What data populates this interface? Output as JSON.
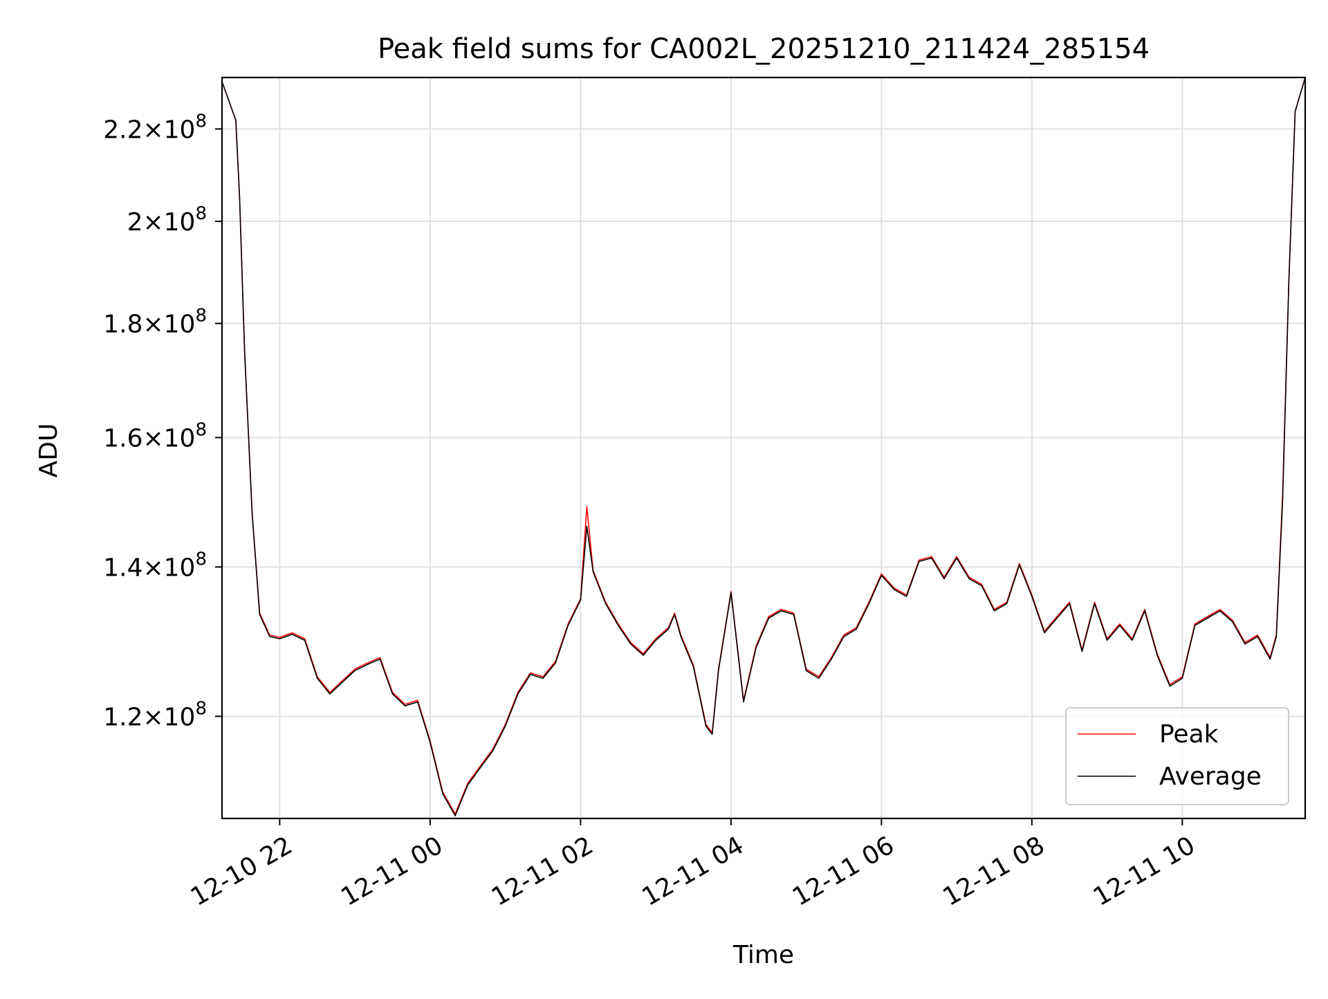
{
  "chart_data": {
    "type": "line",
    "title": "Peak field sums for CA002L_20251210_211424_285154",
    "xlabel": "Time",
    "ylabel": "ADU",
    "y_scale": "log",
    "grid": true,
    "legend_position": "lower-right",
    "xlim": [
      "2025-12-10 21:14",
      "2025-12-11 11:38"
    ],
    "ylim": [
      108000000,
      232000000
    ],
    "x_ticks": [
      {
        "time": "2025-12-10 22:00",
        "label": "12-10 22"
      },
      {
        "time": "2025-12-11 00:00",
        "label": "12-11 00"
      },
      {
        "time": "2025-12-11 02:00",
        "label": "12-11 02"
      },
      {
        "time": "2025-12-11 04:00",
        "label": "12-11 04"
      },
      {
        "time": "2025-12-11 06:00",
        "label": "12-11 06"
      },
      {
        "time": "2025-12-11 08:00",
        "label": "12-11 08"
      },
      {
        "time": "2025-12-11 10:00",
        "label": "12-11 10"
      }
    ],
    "y_ticks": [
      {
        "value": 120000000,
        "mantissa": "1.2",
        "base": "10",
        "exp": "8"
      },
      {
        "value": 140000000,
        "mantissa": "1.4",
        "base": "10",
        "exp": "8"
      },
      {
        "value": 160000000,
        "mantissa": "1.6",
        "base": "10",
        "exp": "8"
      },
      {
        "value": 180000000,
        "mantissa": "1.8",
        "base": "10",
        "exp": "8"
      },
      {
        "value": 200000000,
        "mantissa": "2",
        "base": "10",
        "exp": "8"
      },
      {
        "value": 220000000,
        "mantissa": "2.2",
        "base": "10",
        "exp": "8"
      }
    ],
    "series": [
      {
        "name": "Peak",
        "color": "#ff0000",
        "x": [
          "2025-12-10 21:14",
          "2025-12-10 21:25",
          "2025-12-10 21:28",
          "2025-12-10 21:32",
          "2025-12-10 21:38",
          "2025-12-10 21:44",
          "2025-12-10 21:52",
          "2025-12-10 22:00",
          "2025-12-10 22:10",
          "2025-12-10 22:20",
          "2025-12-10 22:30",
          "2025-12-10 22:40",
          "2025-12-10 22:50",
          "2025-12-10 23:00",
          "2025-12-10 23:10",
          "2025-12-10 23:20",
          "2025-12-10 23:30",
          "2025-12-10 23:40",
          "2025-12-10 23:50",
          "2025-12-11 00:00",
          "2025-12-11 00:10",
          "2025-12-11 00:20",
          "2025-12-11 00:30",
          "2025-12-11 00:40",
          "2025-12-11 00:50",
          "2025-12-11 01:00",
          "2025-12-11 01:10",
          "2025-12-11 01:20",
          "2025-12-11 01:30",
          "2025-12-11 01:40",
          "2025-12-11 01:50",
          "2025-12-11 02:00",
          "2025-12-11 02:05",
          "2025-12-11 02:10",
          "2025-12-11 02:20",
          "2025-12-11 02:30",
          "2025-12-11 02:40",
          "2025-12-11 02:50",
          "2025-12-11 03:00",
          "2025-12-11 03:10",
          "2025-12-11 03:15",
          "2025-12-11 03:20",
          "2025-12-11 03:30",
          "2025-12-11 03:40",
          "2025-12-11 03:45",
          "2025-12-11 03:50",
          "2025-12-11 04:00",
          "2025-12-11 04:10",
          "2025-12-11 04:20",
          "2025-12-11 04:30",
          "2025-12-11 04:40",
          "2025-12-11 04:50",
          "2025-12-11 05:00",
          "2025-12-11 05:10",
          "2025-12-11 05:20",
          "2025-12-11 05:30",
          "2025-12-11 05:40",
          "2025-12-11 05:50",
          "2025-12-11 06:00",
          "2025-12-11 06:10",
          "2025-12-11 06:20",
          "2025-12-11 06:30",
          "2025-12-11 06:40",
          "2025-12-11 06:50",
          "2025-12-11 07:00",
          "2025-12-11 07:10",
          "2025-12-11 07:20",
          "2025-12-11 07:30",
          "2025-12-11 07:40",
          "2025-12-11 07:50",
          "2025-12-11 08:00",
          "2025-12-11 08:10",
          "2025-12-11 08:20",
          "2025-12-11 08:30",
          "2025-12-11 08:40",
          "2025-12-11 08:50",
          "2025-12-11 09:00",
          "2025-12-11 09:10",
          "2025-12-11 09:20",
          "2025-12-11 09:30",
          "2025-12-11 09:40",
          "2025-12-11 09:50",
          "2025-12-11 10:00",
          "2025-12-11 10:10",
          "2025-12-11 10:20",
          "2025-12-11 10:30",
          "2025-12-11 10:40",
          "2025-12-11 10:50",
          "2025-12-11 11:00",
          "2025-12-11 11:05",
          "2025-12-11 11:10",
          "2025-12-11 11:15",
          "2025-12-11 11:20",
          "2025-12-11 11:25",
          "2025-12-11 11:30",
          "2025-12-11 11:38"
        ],
        "values": [
          231000000,
          222000000,
          205000000,
          175000000,
          148000000,
          133500000,
          130500000,
          130200000,
          130800000,
          130000000,
          125000000,
          123000000,
          124500000,
          126000000,
          126800000,
          127500000,
          123000000,
          121500000,
          122000000,
          117000000,
          111000000,
          108500000,
          112000000,
          114000000,
          116000000,
          119000000,
          123000000,
          125500000,
          125000000,
          127000000,
          132000000,
          135500000,
          149000000,
          139500000,
          135000000,
          132000000,
          129500000,
          128000000,
          130000000,
          131500000,
          133500000,
          130500000,
          126500000,
          119000000,
          118000000,
          126000000,
          136500000,
          122000000,
          129000000,
          133000000,
          134000000,
          133500000,
          126000000,
          125000000,
          127500000,
          130500000,
          131500000,
          135000000,
          139000000,
          137000000,
          136000000,
          141000000,
          141500000,
          138500000,
          141500000,
          138500000,
          137500000,
          134000000,
          135000000,
          140500000,
          136000000,
          131000000,
          133000000,
          135000000,
          128500000,
          135000000,
          130000000,
          132000000,
          130000000,
          134000000,
          128000000,
          124000000,
          125000000,
          132000000,
          133000000,
          134000000,
          132500000,
          129500000,
          130500000,
          129000000,
          127500000,
          130500000,
          151000000,
          188000000,
          224000000,
          232000000
        ]
      },
      {
        "name": "Average",
        "color": "#000000",
        "x": [
          "2025-12-10 21:14",
          "2025-12-10 21:25",
          "2025-12-10 21:28",
          "2025-12-10 21:32",
          "2025-12-10 21:38",
          "2025-12-10 21:44",
          "2025-12-10 21:52",
          "2025-12-10 22:00",
          "2025-12-10 22:10",
          "2025-12-10 22:20",
          "2025-12-10 22:30",
          "2025-12-10 22:40",
          "2025-12-10 22:50",
          "2025-12-10 23:00",
          "2025-12-10 23:10",
          "2025-12-10 23:20",
          "2025-12-10 23:30",
          "2025-12-10 23:40",
          "2025-12-10 23:50",
          "2025-12-11 00:00",
          "2025-12-11 00:10",
          "2025-12-11 00:20",
          "2025-12-11 00:30",
          "2025-12-11 00:40",
          "2025-12-11 00:50",
          "2025-12-11 01:00",
          "2025-12-11 01:10",
          "2025-12-11 01:20",
          "2025-12-11 01:30",
          "2025-12-11 01:40",
          "2025-12-11 01:50",
          "2025-12-11 02:00",
          "2025-12-11 02:05",
          "2025-12-11 02:10",
          "2025-12-11 02:20",
          "2025-12-11 02:30",
          "2025-12-11 02:40",
          "2025-12-11 02:50",
          "2025-12-11 03:00",
          "2025-12-11 03:10",
          "2025-12-11 03:15",
          "2025-12-11 03:20",
          "2025-12-11 03:30",
          "2025-12-11 03:40",
          "2025-12-11 03:45",
          "2025-12-11 03:50",
          "2025-12-11 04:00",
          "2025-12-11 04:10",
          "2025-12-11 04:20",
          "2025-12-11 04:30",
          "2025-12-11 04:40",
          "2025-12-11 04:50",
          "2025-12-11 05:00",
          "2025-12-11 05:10",
          "2025-12-11 05:20",
          "2025-12-11 05:30",
          "2025-12-11 05:40",
          "2025-12-11 05:50",
          "2025-12-11 06:00",
          "2025-12-11 06:10",
          "2025-12-11 06:20",
          "2025-12-11 06:30",
          "2025-12-11 06:40",
          "2025-12-11 06:50",
          "2025-12-11 07:00",
          "2025-12-11 07:10",
          "2025-12-11 07:20",
          "2025-12-11 07:30",
          "2025-12-11 07:40",
          "2025-12-11 07:50",
          "2025-12-11 08:00",
          "2025-12-11 08:10",
          "2025-12-11 08:20",
          "2025-12-11 08:30",
          "2025-12-11 08:40",
          "2025-12-11 08:50",
          "2025-12-11 09:00",
          "2025-12-11 09:10",
          "2025-12-11 09:20",
          "2025-12-11 09:30",
          "2025-12-11 09:40",
          "2025-12-11 09:50",
          "2025-12-11 10:00",
          "2025-12-11 10:10",
          "2025-12-11 10:20",
          "2025-12-11 10:30",
          "2025-12-11 10:40",
          "2025-12-11 10:50",
          "2025-12-11 11:00",
          "2025-12-11 11:05",
          "2025-12-11 11:10",
          "2025-12-11 11:15",
          "2025-12-11 11:20",
          "2025-12-11 11:25",
          "2025-12-11 11:30",
          "2025-12-11 11:38"
        ],
        "values": [
          231000000,
          222000000,
          205000000,
          175000000,
          148000000,
          133300000,
          130300000,
          130000000,
          130600000,
          129800000,
          124800000,
          122800000,
          124300000,
          125800000,
          126600000,
          127300000,
          122800000,
          121300000,
          121800000,
          116800000,
          110800000,
          108300000,
          111800000,
          113800000,
          115800000,
          118800000,
          122800000,
          125300000,
          124800000,
          126800000,
          131800000,
          135300000,
          146000000,
          139300000,
          134800000,
          131800000,
          129300000,
          127800000,
          129800000,
          131300000,
          133300000,
          130300000,
          126300000,
          118800000,
          117800000,
          125800000,
          136300000,
          121800000,
          128800000,
          132800000,
          133800000,
          133300000,
          125800000,
          124800000,
          127300000,
          130300000,
          131300000,
          134800000,
          138800000,
          136800000,
          135800000,
          140800000,
          141300000,
          138300000,
          141300000,
          138300000,
          137300000,
          133800000,
          134800000,
          140300000,
          135800000,
          130800000,
          132800000,
          134800000,
          128300000,
          134800000,
          129800000,
          131800000,
          129800000,
          133800000,
          127800000,
          123800000,
          124800000,
          131800000,
          132800000,
          133800000,
          132300000,
          129300000,
          130300000,
          128800000,
          127300000,
          130300000,
          150000000,
          188000000,
          224000000,
          232000000
        ]
      }
    ]
  }
}
